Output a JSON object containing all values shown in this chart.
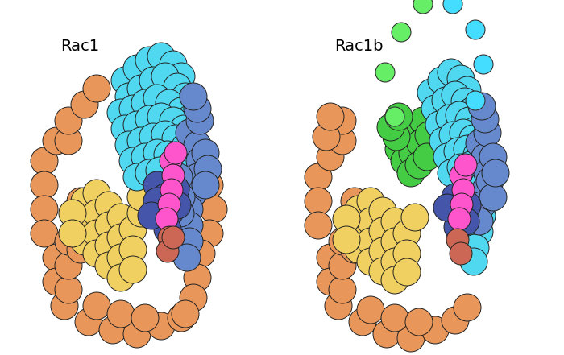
{
  "background": "#ffffff",
  "rac1_label": "Rac1",
  "rac1b_label": "Rac1b",
  "label_fontsize": 14,
  "colors": {
    "orange": "#E8965A",
    "yellow": "#F0D060",
    "cyan": "#50D8F0",
    "blue_med": "#6688CC",
    "blue_deep": "#4455AA",
    "magenta": "#FF55CC",
    "red": "#CC6655",
    "green": "#44CC44",
    "green_dot": "#66EE66",
    "cyan_dot": "#44DDFF"
  },
  "figsize": [
    7.0,
    4.41
  ],
  "dpi": 100
}
